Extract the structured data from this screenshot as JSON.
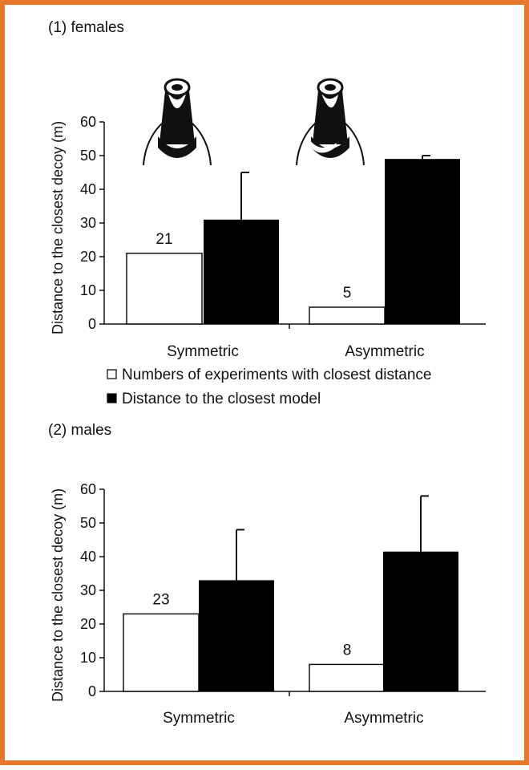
{
  "chart_data": [
    {
      "type": "bar",
      "panel_label": "(1) females",
      "ylabel": "Distance to the closest decoy (m)",
      "ylim": [
        0,
        60
      ],
      "yticks": [
        0,
        10,
        20,
        30,
        40,
        50,
        60
      ],
      "categories": [
        "Symmetric",
        "Asymmetric"
      ],
      "series": [
        {
          "name": "Numbers of experiments with closest distance",
          "color": "#ffffff",
          "values": [
            21,
            5
          ],
          "data_labels": [
            "21",
            "5"
          ]
        },
        {
          "name": "Distance to the closest model",
          "color": "#000000",
          "values": [
            31,
            49
          ],
          "error_upper": [
            45,
            50
          ]
        }
      ],
      "legend_placement": "bottom",
      "grid": false
    },
    {
      "type": "bar",
      "panel_label": "(2) males",
      "ylabel": "Distance to the closest decoy (m)",
      "ylim": [
        0,
        60
      ],
      "yticks": [
        0,
        10,
        20,
        30,
        40,
        50,
        60
      ],
      "categories": [
        "Symmetric",
        "Asymmetric"
      ],
      "series": [
        {
          "name": "Numbers of experiments with closest distance",
          "color": "#ffffff",
          "values": [
            23,
            8
          ],
          "data_labels": [
            "23",
            "8"
          ]
        },
        {
          "name": "Distance to the closest model",
          "color": "#000000",
          "values": [
            33,
            41.5
          ],
          "error_upper": [
            48,
            58
          ]
        }
      ],
      "grid": false
    }
  ],
  "decoy_icons": [
    "symmetric-decoy-icon",
    "asymmetric-decoy-icon"
  ],
  "border_color": "#e8772e"
}
